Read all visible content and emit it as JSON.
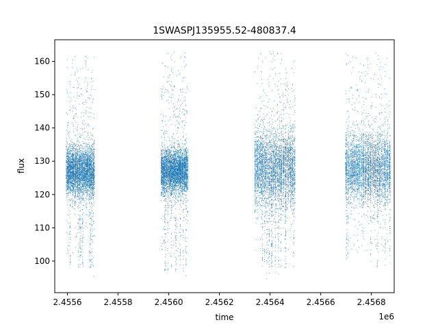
{
  "chart_data": {
    "type": "scatter",
    "title": "1SWASPJ135955.52-480837.4",
    "xlabel": "time",
    "ylabel": "flux",
    "x_offset_label": "1e6",
    "xlim": [
      2455550,
      2456890
    ],
    "ylim": [
      90.5,
      166.5
    ],
    "x_ticks": [
      2455600,
      2455800,
      2456000,
      2456200,
      2456400,
      2456600,
      2456800
    ],
    "x_tick_labels": [
      "2.4556",
      "2.4558",
      "2.4560",
      "2.4562",
      "2.4564",
      "2.4566",
      "2.4568"
    ],
    "y_ticks": [
      100,
      110,
      120,
      130,
      140,
      150,
      160
    ],
    "y_tick_labels": [
      "100",
      "110",
      "120",
      "130",
      "140",
      "150",
      "160"
    ],
    "grid": false,
    "legend": "none",
    "marker_color": "#1f77b4",
    "seasons": [
      {
        "x_range": [
          2455596,
          2455708
        ],
        "flux_center": 127,
        "flux_core_range": [
          120,
          135
        ],
        "flux_extent": [
          94,
          162
        ]
      },
      {
        "x_range": [
          2455970,
          2456076
        ],
        "flux_center": 127,
        "flux_core_range": [
          121,
          134
        ],
        "flux_extent": [
          93,
          163
        ]
      },
      {
        "x_range": [
          2456340,
          2456500
        ],
        "flux_center": 128,
        "flux_core_range": [
          117,
          140
        ],
        "flux_extent": [
          94,
          163
        ]
      },
      {
        "x_range": [
          2456697,
          2456878
        ],
        "flux_center": 128,
        "flux_core_range": [
          118,
          138
        ],
        "flux_extent": [
          94,
          163
        ]
      }
    ]
  }
}
